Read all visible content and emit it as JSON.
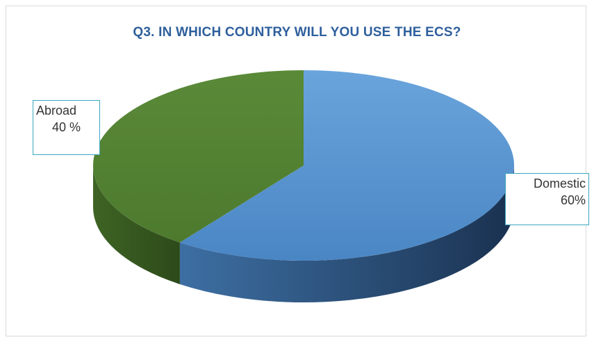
{
  "chart_data": {
    "type": "pie",
    "title": "Q3. IN WHICH COUNTRY WILL YOU USE THE ECS?",
    "slices": [
      {
        "label": "Domestic",
        "value": 60,
        "value_label": "60%",
        "color": "#5b9bd5"
      },
      {
        "label": "Abroad",
        "value": 40,
        "value_label": "40 %",
        "color": "#548235"
      }
    ],
    "style": "3d",
    "legend": "none"
  }
}
